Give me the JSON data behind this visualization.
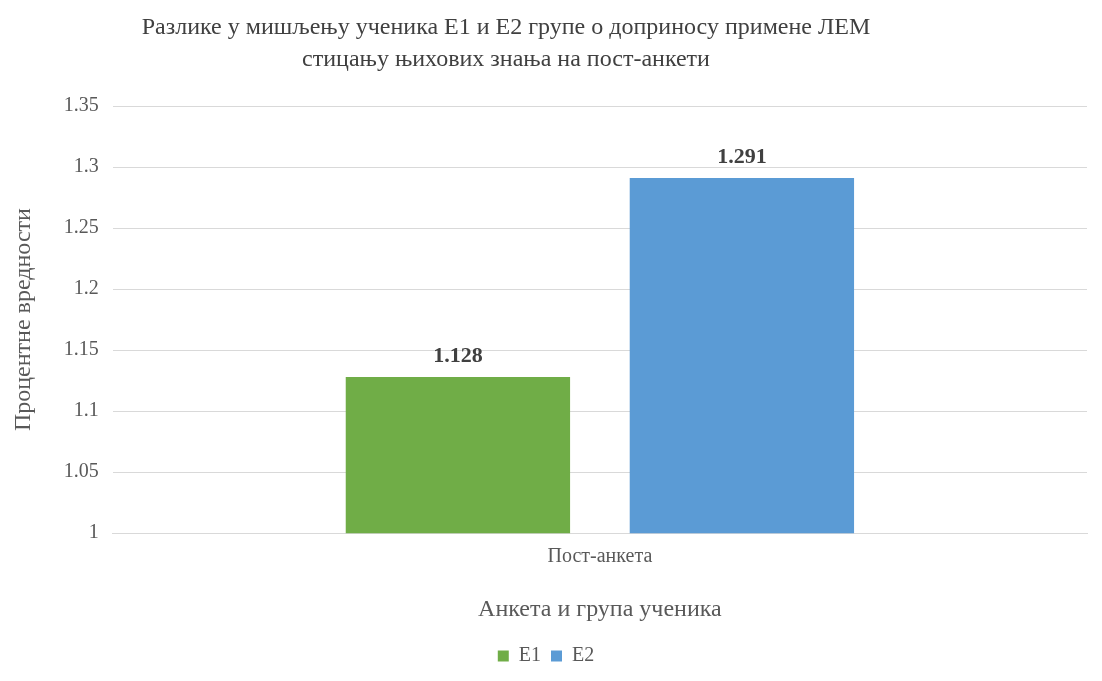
{
  "chart_data": {
    "type": "bar",
    "title": "Разлике у мишљењу ученика Е1 и Е2 групе о доприносу примене ЛЕМ стицању њихових знања на пост-анкети",
    "xlabel": "Анкета и група ученика",
    "ylabel": "Процентне вредности",
    "categories": [
      "Пост-анкета"
    ],
    "series": [
      {
        "name": "Е1",
        "color": "#70ad47",
        "values": [
          1.128
        ]
      },
      {
        "name": "Е2",
        "color": "#5b9bd5",
        "values": [
          1.291
        ]
      }
    ],
    "ylim": [
      1,
      1.35
    ],
    "yticks": [
      1,
      1.05,
      1.1,
      1.15,
      1.2,
      1.25,
      1.3,
      1.35
    ],
    "grid": "y",
    "legend": "bottom",
    "data_labels": true
  }
}
